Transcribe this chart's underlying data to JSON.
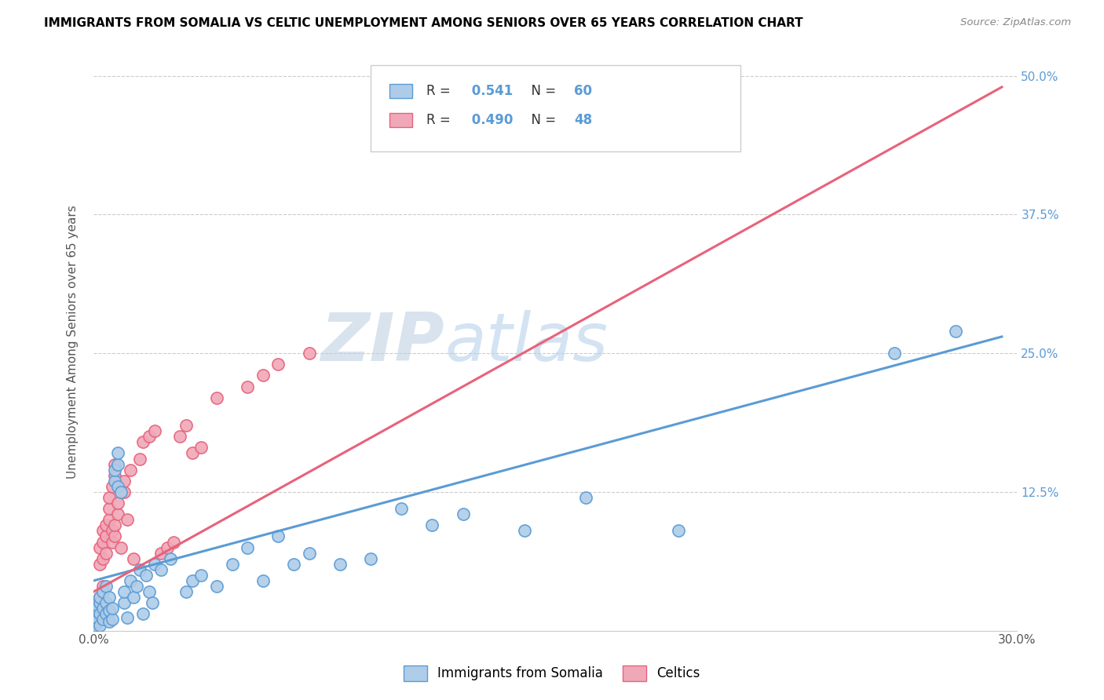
{
  "title": "IMMIGRANTS FROM SOMALIA VS CELTIC UNEMPLOYMENT AMONG SENIORS OVER 65 YEARS CORRELATION CHART",
  "source": "Source: ZipAtlas.com",
  "ylabel": "Unemployment Among Seniors over 65 years",
  "watermark_zip": "ZIP",
  "watermark_atlas": "atlas",
  "blue_color": "#5b9bd5",
  "pink_color": "#e8627a",
  "blue_scatter_color": "#aecce8",
  "pink_scatter_color": "#f0a8b8",
  "legend_label1": "Immigrants from Somalia",
  "legend_label2": "Celtics",
  "R_blue": 0.541,
  "N_blue": 60,
  "R_pink": 0.49,
  "N_pink": 48,
  "xlim": [
    0.0,
    0.3
  ],
  "ylim": [
    0.0,
    0.52
  ],
  "blue_scatter": [
    [
      0.0005,
      0.005
    ],
    [
      0.001,
      0.008
    ],
    [
      0.001,
      0.012
    ],
    [
      0.001,
      0.018
    ],
    [
      0.0015,
      0.022
    ],
    [
      0.002,
      0.005
    ],
    [
      0.002,
      0.015
    ],
    [
      0.002,
      0.025
    ],
    [
      0.002,
      0.03
    ],
    [
      0.003,
      0.01
    ],
    [
      0.003,
      0.02
    ],
    [
      0.003,
      0.035
    ],
    [
      0.004,
      0.015
    ],
    [
      0.004,
      0.025
    ],
    [
      0.004,
      0.04
    ],
    [
      0.005,
      0.008
    ],
    [
      0.005,
      0.018
    ],
    [
      0.005,
      0.03
    ],
    [
      0.006,
      0.01
    ],
    [
      0.006,
      0.02
    ],
    [
      0.007,
      0.135
    ],
    [
      0.007,
      0.145
    ],
    [
      0.008,
      0.13
    ],
    [
      0.008,
      0.15
    ],
    [
      0.008,
      0.16
    ],
    [
      0.009,
      0.125
    ],
    [
      0.01,
      0.025
    ],
    [
      0.01,
      0.035
    ],
    [
      0.011,
      0.012
    ],
    [
      0.012,
      0.045
    ],
    [
      0.013,
      0.03
    ],
    [
      0.014,
      0.04
    ],
    [
      0.015,
      0.055
    ],
    [
      0.016,
      0.015
    ],
    [
      0.017,
      0.05
    ],
    [
      0.018,
      0.035
    ],
    [
      0.019,
      0.025
    ],
    [
      0.02,
      0.06
    ],
    [
      0.022,
      0.055
    ],
    [
      0.025,
      0.065
    ],
    [
      0.03,
      0.035
    ],
    [
      0.032,
      0.045
    ],
    [
      0.035,
      0.05
    ],
    [
      0.04,
      0.04
    ],
    [
      0.045,
      0.06
    ],
    [
      0.05,
      0.075
    ],
    [
      0.055,
      0.045
    ],
    [
      0.06,
      0.085
    ],
    [
      0.065,
      0.06
    ],
    [
      0.07,
      0.07
    ],
    [
      0.08,
      0.06
    ],
    [
      0.09,
      0.065
    ],
    [
      0.1,
      0.11
    ],
    [
      0.11,
      0.095
    ],
    [
      0.12,
      0.105
    ],
    [
      0.14,
      0.09
    ],
    [
      0.16,
      0.12
    ],
    [
      0.19,
      0.09
    ],
    [
      0.26,
      0.25
    ],
    [
      0.28,
      0.27
    ]
  ],
  "pink_scatter": [
    [
      0.0005,
      0.005
    ],
    [
      0.001,
      0.01
    ],
    [
      0.001,
      0.02
    ],
    [
      0.0015,
      0.025
    ],
    [
      0.002,
      0.03
    ],
    [
      0.002,
      0.06
    ],
    [
      0.002,
      0.075
    ],
    [
      0.003,
      0.04
    ],
    [
      0.003,
      0.065
    ],
    [
      0.003,
      0.08
    ],
    [
      0.003,
      0.09
    ],
    [
      0.004,
      0.07
    ],
    [
      0.004,
      0.085
    ],
    [
      0.004,
      0.095
    ],
    [
      0.005,
      0.1
    ],
    [
      0.005,
      0.11
    ],
    [
      0.005,
      0.12
    ],
    [
      0.006,
      0.08
    ],
    [
      0.006,
      0.09
    ],
    [
      0.006,
      0.13
    ],
    [
      0.007,
      0.085
    ],
    [
      0.007,
      0.095
    ],
    [
      0.007,
      0.14
    ],
    [
      0.007,
      0.15
    ],
    [
      0.008,
      0.105
    ],
    [
      0.008,
      0.115
    ],
    [
      0.009,
      0.075
    ],
    [
      0.01,
      0.125
    ],
    [
      0.01,
      0.135
    ],
    [
      0.011,
      0.1
    ],
    [
      0.012,
      0.145
    ],
    [
      0.013,
      0.065
    ],
    [
      0.015,
      0.155
    ],
    [
      0.016,
      0.17
    ],
    [
      0.018,
      0.175
    ],
    [
      0.02,
      0.18
    ],
    [
      0.022,
      0.07
    ],
    [
      0.024,
      0.075
    ],
    [
      0.026,
      0.08
    ],
    [
      0.028,
      0.175
    ],
    [
      0.03,
      0.185
    ],
    [
      0.032,
      0.16
    ],
    [
      0.035,
      0.165
    ],
    [
      0.04,
      0.21
    ],
    [
      0.05,
      0.22
    ],
    [
      0.055,
      0.23
    ],
    [
      0.06,
      0.24
    ],
    [
      0.07,
      0.25
    ]
  ],
  "blue_line_x": [
    0.0,
    0.295
  ],
  "blue_line_y": [
    0.045,
    0.265
  ],
  "pink_line_x": [
    0.0,
    0.295
  ],
  "pink_line_y": [
    0.035,
    0.49
  ]
}
